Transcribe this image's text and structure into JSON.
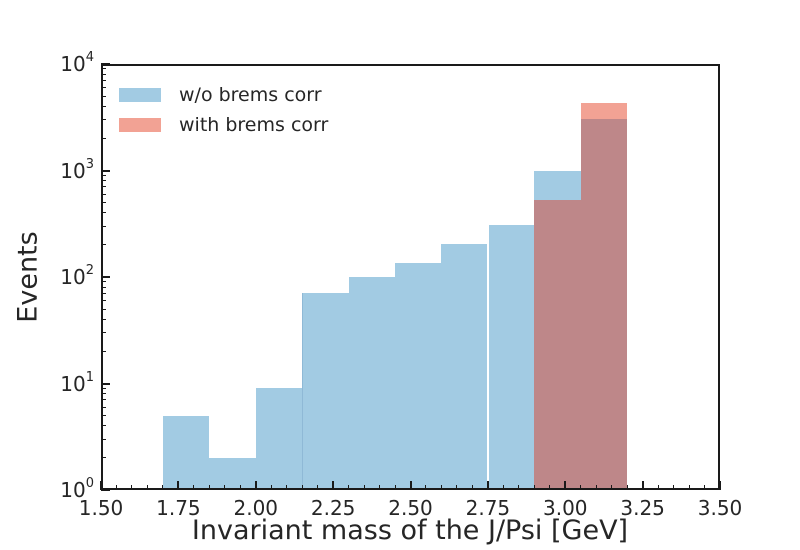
{
  "chart_data": {
    "type": "histogram",
    "title": "",
    "xlabel": "Invariant mass of the J/Psi [GeV]",
    "ylabel": "Events",
    "xlim": [
      1.5,
      3.5
    ],
    "ylim": [
      1,
      10000
    ],
    "yscale": "log",
    "grid": false,
    "bin_edges": [
      1.7,
      1.85,
      2.0,
      2.15,
      2.3,
      2.45,
      2.6,
      2.75,
      2.9,
      3.05,
      3.2
    ],
    "series": [
      {
        "name": "w/o brems corr",
        "color": "#a2cbe3",
        "values": [
          5,
          2,
          9,
          70,
          100,
          135,
          205,
          310,
          1000,
          3050
        ]
      },
      {
        "name": "with brems corr",
        "color": "#f2a294",
        "values": [
          0,
          0,
          0,
          0,
          0,
          0,
          0,
          0,
          530,
          4300
        ]
      }
    ],
    "overlap_color": "#be8789",
    "seams": [
      {
        "x": 2.15,
        "color": "#8fb9d6",
        "from_value": 70,
        "width": 1
      },
      {
        "x": 2.75,
        "color": "#ffffff",
        "from_value": 310,
        "width": 1.5
      }
    ],
    "x_ticks": {
      "values": [
        1.5,
        1.75,
        2.0,
        2.25,
        2.5,
        2.75,
        3.0,
        3.25,
        3.5
      ],
      "labels": [
        "1.50",
        "1.75",
        "2.00",
        "2.25",
        "2.50",
        "2.75",
        "3.00",
        "3.25",
        "3.50"
      ],
      "minor_step": 0.05
    },
    "y_ticks": {
      "base": "10",
      "exponents": [
        0,
        1,
        2,
        3,
        4
      ],
      "minor_multiples": [
        2,
        3,
        4,
        5,
        6,
        7,
        8,
        9
      ]
    },
    "legend": {
      "position": "upper left",
      "frame": false
    },
    "axis_color": "#1a1a1a",
    "text_color": "#262626",
    "background_color": "#ffffff"
  }
}
